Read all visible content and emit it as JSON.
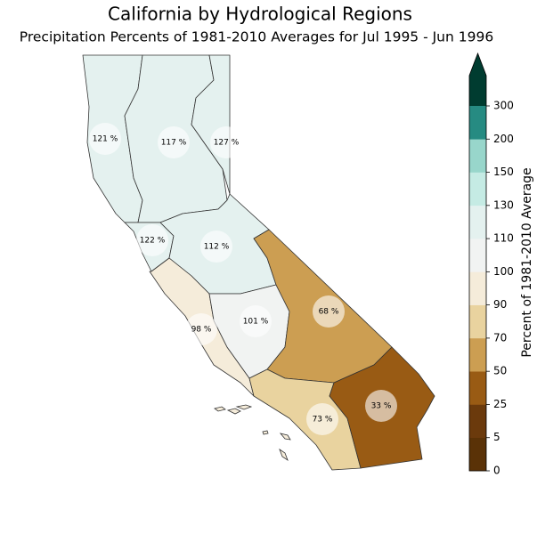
{
  "header": {
    "title": "California by Hydrological Regions",
    "subtitle": "Precipitation Percents of 1981-2010 Averages for Jul 1995 - Jun 1996"
  },
  "regions": [
    {
      "value": 121,
      "label": "121 %"
    },
    {
      "value": 117,
      "label": "117 %"
    },
    {
      "value": 127,
      "label": "127 %"
    },
    {
      "value": 122,
      "label": "122 %"
    },
    {
      "value": 112,
      "label": "112 %"
    },
    {
      "value": 98,
      "label": "98 %"
    },
    {
      "value": 101,
      "label": "101 %"
    },
    {
      "value": 68,
      "label": "68 %"
    },
    {
      "value": 73,
      "label": "73 %"
    },
    {
      "value": 33,
      "label": "33 %"
    }
  ],
  "colorbar": {
    "label": "Percent of 1981-2010 Average",
    "ticks": [
      0,
      5,
      25,
      50,
      70,
      90,
      100,
      110,
      130,
      150,
      200,
      300
    ],
    "colors": [
      "#5a3207",
      "#6b3a0c",
      "#995b14",
      "#cc9e52",
      "#e9d39f",
      "#f5ecda",
      "#f1f3f2",
      "#e4f1ef",
      "#c5ebe4",
      "#98d6cb",
      "#268b82",
      "#003c30"
    ]
  }
}
